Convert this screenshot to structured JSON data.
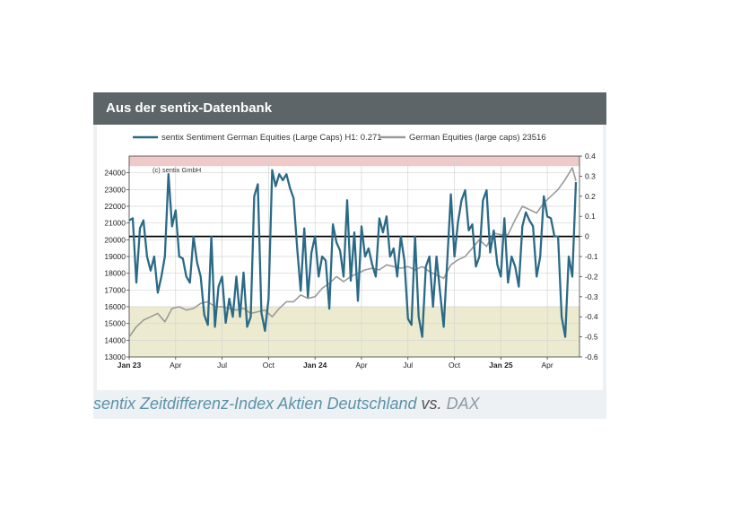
{
  "header": {
    "title": "Aus der sentix-Datenbank"
  },
  "caption": {
    "main": "sentix Zeitdifferenz-Index Aktien Deutschland",
    "vs": "vs.",
    "dax": "DAX"
  },
  "colors": {
    "header_bg": "#5d6568",
    "sentiment_line": "#2b6a86",
    "dax_line": "#9a9a9a",
    "upper_band": "#f0c9c9",
    "lower_band": "#ecebd0",
    "zero_line": "#000000"
  },
  "chart_data": {
    "type": "line",
    "title": "",
    "watermark": "(c) sentix GmbH",
    "legend_position": "top",
    "grid": true,
    "x_ticks": [
      {
        "label": "Jan 23",
        "t": 0,
        "bold": true
      },
      {
        "label": "Apr",
        "t": 13,
        "bold": false
      },
      {
        "label": "Jul",
        "t": 26,
        "bold": false
      },
      {
        "label": "Oct",
        "t": 39,
        "bold": false
      },
      {
        "label": "Jan 24",
        "t": 52,
        "bold": true
      },
      {
        "label": "Apr",
        "t": 65,
        "bold": false
      },
      {
        "label": "Jul",
        "t": 78,
        "bold": false
      },
      {
        "label": "Oct",
        "t": 91,
        "bold": false
      },
      {
        "label": "Jan 25",
        "t": 104,
        "bold": true
      },
      {
        "label": "Apr",
        "t": 117,
        "bold": false
      }
    ],
    "xlim": [
      0,
      126
    ],
    "y_left": {
      "ticks": [
        "13000",
        "14000",
        "15000",
        "16000",
        "17000",
        "18000",
        "19000",
        "20000",
        "21000",
        "22000",
        "23000",
        "24000"
      ],
      "lim": [
        13000,
        25000
      ]
    },
    "y_right": {
      "ticks": [
        "-0.6",
        "-0.5",
        "-0.4",
        "-0.3",
        "-0.2",
        "-0.1",
        "0",
        "0.1",
        "0.2",
        "0.3",
        "0.4"
      ],
      "lim": [
        -0.6,
        0.4
      ]
    },
    "bands": [
      {
        "name": "upper-extreme",
        "axis": "right",
        "from": 0.35,
        "to": 0.42
      },
      {
        "name": "lower-extreme",
        "axis": "right",
        "from": -0.6,
        "to": -0.35
      }
    ],
    "zero_line": {
      "axis": "right",
      "value": 0
    },
    "series": [
      {
        "name": "sentiment",
        "legend": "sentix Sentiment German Equities (Large Caps) H1: 0.271",
        "axis": "right",
        "t": [
          0,
          1,
          2,
          3,
          4,
          5,
          6,
          7,
          8,
          9,
          10,
          11,
          12,
          13,
          14,
          15,
          16,
          17,
          18,
          19,
          20,
          21,
          22,
          23,
          24,
          25,
          26,
          27,
          28,
          29,
          30,
          31,
          32,
          33,
          34,
          35,
          36,
          37,
          38,
          39,
          40,
          41,
          42,
          43,
          44,
          45,
          46,
          47,
          48,
          49,
          50,
          51,
          52,
          53,
          54,
          55,
          56,
          57,
          58,
          59,
          60,
          61,
          62,
          63,
          64,
          65,
          66,
          67,
          68,
          69,
          70,
          71,
          72,
          73,
          74,
          75,
          76,
          77,
          78,
          79,
          80,
          81,
          82,
          83,
          84,
          85,
          86,
          87,
          88,
          89,
          90,
          91,
          92,
          93,
          94,
          95,
          96,
          97,
          98,
          99,
          100,
          101,
          102,
          103,
          104,
          105,
          106,
          107,
          108,
          109,
          110,
          111,
          112,
          113,
          114,
          115,
          116,
          117,
          118,
          119,
          120,
          121,
          122,
          123,
          124,
          125
        ],
        "values": [
          0.08,
          0.09,
          -0.23,
          0.04,
          0.08,
          -0.1,
          -0.17,
          -0.1,
          -0.28,
          -0.2,
          -0.1,
          0.31,
          0.05,
          0.13,
          -0.1,
          -0.11,
          -0.2,
          -0.23,
          0.0,
          -0.13,
          -0.2,
          -0.39,
          -0.44,
          0.0,
          -0.45,
          -0.25,
          -0.2,
          -0.43,
          -0.31,
          -0.4,
          -0.2,
          -0.4,
          -0.18,
          -0.45,
          -0.4,
          0.2,
          0.26,
          -0.38,
          -0.47,
          -0.31,
          0.33,
          0.25,
          0.31,
          0.28,
          0.31,
          0.24,
          0.19,
          -0.06,
          -0.27,
          0.04,
          -0.3,
          -0.08,
          0.0,
          -0.2,
          -0.1,
          -0.12,
          -0.36,
          0.06,
          -0.03,
          -0.07,
          -0.2,
          0.18,
          -0.22,
          0.02,
          -0.32,
          0.05,
          -0.1,
          -0.06,
          -0.14,
          -0.2,
          0.09,
          0.02,
          0.1,
          -0.1,
          -0.06,
          -0.2,
          0.0,
          -0.12,
          -0.41,
          -0.44,
          0.0,
          -0.4,
          -0.5,
          -0.15,
          -0.1,
          -0.35,
          -0.1,
          -0.28,
          -0.45,
          -0.12,
          0.21,
          -0.1,
          0.07,
          0.18,
          0.23,
          0.03,
          0.06,
          -0.15,
          -0.1,
          0.18,
          0.23,
          -0.08,
          0.03,
          -0.14,
          -0.2,
          0.09,
          -0.23,
          -0.1,
          -0.15,
          -0.25,
          0.05,
          0.12,
          0.08,
          0.05,
          -0.2,
          -0.1,
          0.2,
          0.1,
          0.09,
          0.0,
          0.0,
          -0.4,
          -0.5,
          -0.1,
          -0.2,
          0.27
        ],
        "color": "#2b6a86"
      },
      {
        "name": "dax",
        "legend": "German Equities (large caps) 23516",
        "axis": "left",
        "t": [
          0,
          2,
          4,
          6,
          8,
          10,
          12,
          14,
          16,
          18,
          20,
          22,
          24,
          26,
          28,
          30,
          32,
          34,
          36,
          38,
          40,
          42,
          44,
          46,
          48,
          50,
          52,
          54,
          56,
          58,
          60,
          62,
          64,
          66,
          68,
          70,
          72,
          74,
          76,
          78,
          80,
          82,
          84,
          86,
          88,
          90,
          92,
          94,
          96,
          98,
          100,
          102,
          104,
          106,
          108,
          110,
          112,
          114,
          116,
          118,
          120,
          122,
          124,
          125
        ],
        "values": [
          14200,
          14800,
          15200,
          15400,
          15600,
          15100,
          15900,
          16000,
          15800,
          15900,
          16200,
          16300,
          16000,
          16000,
          15900,
          15800,
          15900,
          15600,
          15700,
          15800,
          15400,
          15900,
          16300,
          16300,
          16700,
          16500,
          16600,
          17100,
          17400,
          17800,
          17500,
          17800,
          18000,
          18200,
          18300,
          18200,
          18500,
          18400,
          18300,
          18400,
          18200,
          18400,
          18100,
          17900,
          17700,
          18500,
          18800,
          19000,
          19500,
          20000,
          19600,
          20400,
          20300,
          20300,
          21200,
          22000,
          21800,
          21600,
          22200,
          22600,
          23000,
          23600,
          24300,
          23516
        ],
        "color": "#9a9a9a"
      }
    ]
  }
}
